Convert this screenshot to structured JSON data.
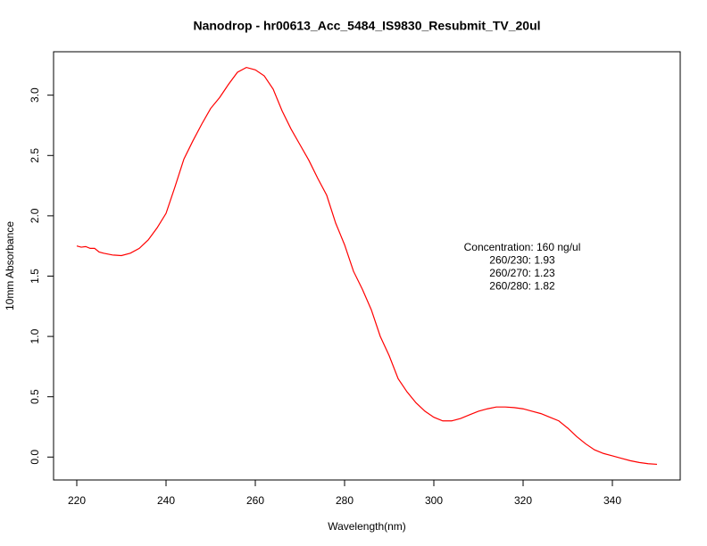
{
  "chart_data": {
    "type": "line",
    "title": "Nanodrop - hr00613_Acc_5484_IS9830_Resubmit_TV_20ul",
    "x_label": "Wavelength(nm)",
    "y_label": "10mm Absorbance",
    "annotations": [
      "Concentration: 160 ng/ul",
      "260/230: 1.93",
      "260/270: 1.23",
      "260/280: 1.82"
    ],
    "x": [
      220,
      221,
      222,
      223,
      224,
      225,
      226,
      228,
      230,
      232,
      234,
      236,
      238,
      240,
      242,
      244,
      246,
      248,
      250,
      252,
      254,
      256,
      258,
      260,
      262,
      264,
      266,
      268,
      270,
      272,
      274,
      276,
      278,
      280,
      282,
      284,
      286,
      288,
      290,
      292,
      294,
      296,
      298,
      300,
      302,
      304,
      306,
      308,
      310,
      312,
      314,
      316,
      318,
      320,
      322,
      324,
      326,
      328,
      330,
      332,
      334,
      336,
      338,
      340,
      342,
      344,
      346,
      348,
      350
    ],
    "series": [
      {
        "name": "Absorbance",
        "color": "#ff0000",
        "values": [
          1.75,
          1.74,
          1.745,
          1.73,
          1.73,
          1.7,
          1.69,
          1.675,
          1.67,
          1.69,
          1.73,
          1.8,
          1.9,
          2.02,
          2.24,
          2.47,
          2.62,
          2.76,
          2.89,
          2.98,
          3.09,
          3.19,
          3.23,
          3.21,
          3.16,
          3.05,
          2.87,
          2.72,
          2.59,
          2.46,
          2.31,
          2.17,
          1.94,
          1.76,
          1.54,
          1.39,
          1.22,
          1.0,
          0.84,
          0.65,
          0.54,
          0.45,
          0.38,
          0.33,
          0.3,
          0.3,
          0.32,
          0.35,
          0.38,
          0.4,
          0.415,
          0.415,
          0.41,
          0.4,
          0.38,
          0.36,
          0.33,
          0.3,
          0.24,
          0.17,
          0.11,
          0.06,
          0.03,
          0.01,
          -0.01,
          -0.03,
          -0.045,
          -0.055,
          -0.06
        ]
      }
    ],
    "xlim": [
      214.8,
      355.2
    ],
    "ylim": [
      -0.19,
      3.36
    ],
    "xticks": [
      220,
      240,
      260,
      280,
      300,
      320,
      340
    ],
    "yticks": [
      {
        "value": 0,
        "label": "0.0"
      },
      0.5,
      {
        "value": 1,
        "label": "1.0"
      },
      1.5,
      {
        "value": 2,
        "label": "2.0"
      },
      2.5,
      {
        "value": 3,
        "label": "3.0"
      }
    ]
  }
}
